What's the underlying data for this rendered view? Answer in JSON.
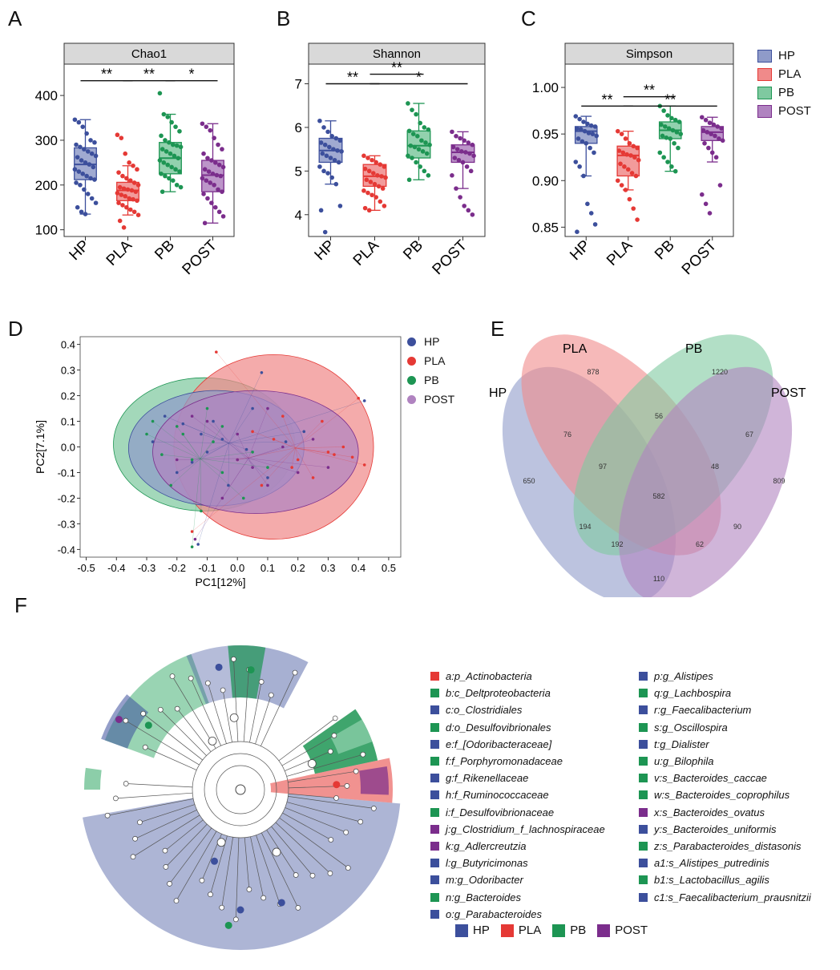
{
  "colors": {
    "HP": "#3c4f9c",
    "PLA": "#e53935",
    "PB": "#1d9553",
    "POST": "#7b2d8c"
  },
  "fill": {
    "HP": "#8f9bc9",
    "PLA": "#f08a8a",
    "PB": "#7fc9a0",
    "POST": "#b083c0"
  },
  "groups": [
    "HP",
    "PLA",
    "PB",
    "POST"
  ],
  "panels": {
    "A": "A",
    "B": "B",
    "C": "C",
    "D": "D",
    "E": "E",
    "F": "F"
  },
  "chart_data": [
    {
      "type": "box",
      "panel": "A",
      "title": "Chao1",
      "categories": [
        "HP",
        "PLA",
        "PB",
        "POST"
      ],
      "ylim": [
        85,
        470
      ],
      "yticks": [
        100,
        200,
        300,
        400
      ],
      "boxes": [
        {
          "q1": 212,
          "median": 246,
          "q3": 283,
          "lo": 135,
          "hi": 346
        },
        {
          "q1": 165,
          "median": 188,
          "q3": 206,
          "lo": 133,
          "hi": 243
        },
        {
          "q1": 225,
          "median": 260,
          "q3": 295,
          "lo": 185,
          "hi": 358
        },
        {
          "q1": 185,
          "median": 222,
          "q3": 255,
          "lo": 115,
          "hi": 337
        }
      ],
      "points": [
        [
          346,
          340,
          330,
          315,
          300,
          295,
          290,
          285,
          280,
          275,
          270,
          265,
          262,
          255,
          250,
          246,
          240,
          235,
          230,
          225,
          220,
          215,
          212,
          205,
          200,
          190,
          180,
          170,
          160,
          150,
          140,
          135
        ],
        [
          312,
          305,
          270,
          250,
          243,
          235,
          228,
          220,
          215,
          210,
          205,
          200,
          195,
          192,
          190,
          188,
          185,
          182,
          178,
          175,
          170,
          168,
          165,
          160,
          155,
          150,
          145,
          140,
          133,
          120,
          105
        ],
        [
          405,
          358,
          352,
          340,
          330,
          320,
          310,
          300,
          295,
          290,
          288,
          285,
          280,
          275,
          270,
          265,
          260,
          255,
          250,
          245,
          240,
          235,
          230,
          225,
          220,
          215,
          210,
          200,
          195,
          185
        ],
        [
          337,
          330,
          322,
          305,
          290,
          280,
          270,
          260,
          255,
          250,
          245,
          240,
          235,
          230,
          225,
          222,
          220,
          215,
          210,
          205,
          200,
          190,
          185,
          180,
          170,
          160,
          150,
          140,
          130,
          115
        ]
      ],
      "significance": [
        {
          "from": 0,
          "to": 1,
          "label": "**",
          "y": 433
        },
        {
          "from": 1,
          "to": 2,
          "label": "**",
          "y": 433
        },
        {
          "from": 2,
          "to": 3,
          "label": "*",
          "y": 433
        }
      ]
    },
    {
      "type": "box",
      "panel": "B",
      "title": "Shannon",
      "categories": [
        "HP",
        "PLA",
        "PB",
        "POST"
      ],
      "ylim": [
        3.5,
        7.45
      ],
      "yticks": [
        4,
        5,
        6,
        7
      ],
      "boxes": [
        {
          "q1": 5.2,
          "median": 5.47,
          "q3": 5.75,
          "lo": 4.7,
          "hi": 6.15
        },
        {
          "q1": 4.65,
          "median": 4.88,
          "q3": 5.15,
          "lo": 4.1,
          "hi": 5.35
        },
        {
          "q1": 5.3,
          "median": 5.58,
          "q3": 5.92,
          "lo": 4.8,
          "hi": 6.55
        },
        {
          "q1": 5.2,
          "median": 5.43,
          "q3": 5.6,
          "lo": 4.6,
          "hi": 5.9
        }
      ],
      "points": [
        [
          6.15,
          6.0,
          5.9,
          5.8,
          5.75,
          5.7,
          5.65,
          5.6,
          5.55,
          5.5,
          5.47,
          5.45,
          5.4,
          5.35,
          5.3,
          5.25,
          5.2,
          5.1,
          5.0,
          4.95,
          4.85,
          4.7,
          4.2,
          4.1,
          3.6
        ],
        [
          5.35,
          5.3,
          5.25,
          5.2,
          5.15,
          5.1,
          5.05,
          5.0,
          4.95,
          4.9,
          4.88,
          4.85,
          4.8,
          4.75,
          4.7,
          4.65,
          4.6,
          4.55,
          4.5,
          4.45,
          4.4,
          4.3,
          4.2,
          4.15,
          4.1
        ],
        [
          6.55,
          6.4,
          6.3,
          6.1,
          6.0,
          5.95,
          5.92,
          5.85,
          5.8,
          5.7,
          5.65,
          5.6,
          5.58,
          5.55,
          5.5,
          5.45,
          5.4,
          5.35,
          5.3,
          5.2,
          5.1,
          5.0,
          4.9,
          4.8
        ],
        [
          5.9,
          5.8,
          5.75,
          5.7,
          5.65,
          5.6,
          5.55,
          5.5,
          5.45,
          5.43,
          5.4,
          5.35,
          5.3,
          5.25,
          5.2,
          5.1,
          5.0,
          4.9,
          4.6,
          4.4,
          4.2,
          4.1,
          4.0
        ]
      ],
      "significance": [
        {
          "from": 0,
          "to": 1,
          "label": "**",
          "y": 7.0
        },
        {
          "from": 1,
          "to": 2,
          "label": "**",
          "y": 7.22
        },
        {
          "from": 1,
          "to": 3,
          "label": "*",
          "y": 7.0
        }
      ]
    },
    {
      "type": "box",
      "panel": "C",
      "title": "Simpson",
      "categories": [
        "HP",
        "PLA",
        "PB",
        "POST"
      ],
      "ylim": [
        0.84,
        1.025
      ],
      "yticks": [
        0.85,
        0.9,
        0.95,
        1.0
      ],
      "ytick_labels": [
        "0.85",
        "0.90",
        "0.95",
        "1.00"
      ],
      "boxes": [
        {
          "q1": 0.94,
          "median": 0.953,
          "q3": 0.958,
          "lo": 0.905,
          "hi": 0.969
        },
        {
          "q1": 0.905,
          "median": 0.927,
          "q3": 0.937,
          "lo": 0.89,
          "hi": 0.953
        },
        {
          "q1": 0.945,
          "median": 0.954,
          "q3": 0.963,
          "lo": 0.91,
          "hi": 0.98
        },
        {
          "q1": 0.943,
          "median": 0.952,
          "q3": 0.958,
          "lo": 0.92,
          "hi": 0.968
        }
      ],
      "points": [
        [
          0.969,
          0.966,
          0.963,
          0.961,
          0.959,
          0.958,
          0.956,
          0.955,
          0.953,
          0.951,
          0.95,
          0.948,
          0.945,
          0.942,
          0.94,
          0.935,
          0.93,
          0.92,
          0.915,
          0.905,
          0.875,
          0.865,
          0.853,
          0.845
        ],
        [
          0.953,
          0.95,
          0.945,
          0.94,
          0.937,
          0.935,
          0.932,
          0.93,
          0.928,
          0.927,
          0.925,
          0.922,
          0.918,
          0.915,
          0.912,
          0.908,
          0.905,
          0.9,
          0.895,
          0.89,
          0.88,
          0.87,
          0.858
        ],
        [
          0.98,
          0.975,
          0.97,
          0.967,
          0.965,
          0.963,
          0.96,
          0.958,
          0.956,
          0.954,
          0.952,
          0.95,
          0.948,
          0.946,
          0.945,
          0.94,
          0.935,
          0.93,
          0.925,
          0.92,
          0.915,
          0.91
        ],
        [
          0.968,
          0.965,
          0.962,
          0.96,
          0.958,
          0.956,
          0.954,
          0.952,
          0.95,
          0.948,
          0.945,
          0.943,
          0.94,
          0.935,
          0.93,
          0.925,
          0.895,
          0.885,
          0.875,
          0.865
        ]
      ],
      "significance": [
        {
          "from": 0,
          "to": 1,
          "label": "**",
          "y": 0.98
        },
        {
          "from": 1,
          "to": 2,
          "label": "**",
          "y": 0.99
        },
        {
          "from": 1,
          "to": 3,
          "label": "**",
          "y": 0.98
        }
      ]
    },
    {
      "type": "scatter",
      "panel": "D",
      "xlabel": "PC1[12%]",
      "ylabel": "PC2[7.1%]",
      "xlim": [
        -0.52,
        0.54
      ],
      "ylim": [
        -0.43,
        0.43
      ],
      "xticks": [
        -0.5,
        -0.4,
        -0.3,
        -0.2,
        -0.1,
        0.0,
        0.1,
        0.2,
        0.3,
        0.4,
        0.5
      ],
      "xtick_labels": [
        "-0.5",
        "-0.4",
        "-0.3",
        "-0.2",
        "-0.1",
        "0.0",
        "0.1",
        "0.2",
        "0.3",
        "0.4",
        "0.5"
      ],
      "yticks": [
        -0.4,
        -0.3,
        -0.2,
        -0.1,
        0.0,
        0.1,
        0.2,
        0.3,
        0.4
      ],
      "ytick_labels": [
        "-0.4",
        "-0.3",
        "-0.2",
        "-0.1",
        "0.0",
        "0.1",
        "0.2",
        "0.3",
        "0.4"
      ],
      "ellipses": [
        {
          "group": "PB",
          "cx": -0.11,
          "cy": 0.01,
          "rx": 0.3,
          "ry": 0.26
        },
        {
          "group": "PLA",
          "cx": 0.12,
          "cy": 0.0,
          "rx": 0.33,
          "ry": 0.36
        },
        {
          "group": "HP",
          "cx": -0.07,
          "cy": -0.005,
          "rx": 0.29,
          "ry": 0.225
        },
        {
          "group": "POST",
          "cx": 0.06,
          "cy": -0.02,
          "rx": 0.34,
          "ry": 0.24
        }
      ],
      "points": {
        "HP": [
          [
            -0.24,
            0.12
          ],
          [
            -0.18,
            0.09
          ],
          [
            -0.12,
            0.05
          ],
          [
            -0.05,
            0.03
          ],
          [
            0.03,
            -0.01
          ],
          [
            -0.28,
            0.02
          ],
          [
            -0.08,
            0.1
          ],
          [
            0.08,
            0.29
          ],
          [
            0.1,
            -0.12
          ],
          [
            -0.15,
            -0.06
          ],
          [
            0.22,
            0.06
          ],
          [
            0.42,
            0.18
          ],
          [
            -0.03,
            -0.15
          ],
          [
            0.16,
            0.02
          ],
          [
            -0.2,
            -0.1
          ],
          [
            -0.13,
            -0.38
          ],
          [
            0.05,
            0.15
          ],
          [
            -0.1,
            -0.02
          ]
        ],
        "PLA": [
          [
            0.12,
            0.03
          ],
          [
            0.2,
            -0.05
          ],
          [
            0.3,
            -0.02
          ],
          [
            0.35,
            0.0
          ],
          [
            0.38,
            -0.04
          ],
          [
            0.42,
            -0.07
          ],
          [
            0.25,
            -0.12
          ],
          [
            0.08,
            -0.15
          ],
          [
            0.15,
            0.12
          ],
          [
            -0.07,
            0.37
          ],
          [
            0.4,
            0.19
          ],
          [
            -0.15,
            -0.33
          ],
          [
            0.32,
            -0.03
          ],
          [
            0.05,
            0.06
          ],
          [
            0.18,
            -0.08
          ],
          [
            0.28,
            0.1
          ],
          [
            0.0,
            -0.05
          ]
        ],
        "PB": [
          [
            -0.28,
            0.1
          ],
          [
            -0.2,
            0.08
          ],
          [
            -0.15,
            -0.05
          ],
          [
            -0.08,
            0.02
          ],
          [
            -0.18,
            0.05
          ],
          [
            -0.12,
            -0.25
          ],
          [
            -0.05,
            -0.1
          ],
          [
            0.02,
            -0.2
          ],
          [
            -0.25,
            -0.03
          ],
          [
            -0.15,
            -0.39
          ],
          [
            -0.1,
            0.15
          ],
          [
            0.05,
            -0.02
          ],
          [
            -0.22,
            -0.15
          ],
          [
            0.1,
            -0.08
          ],
          [
            -0.3,
            0.05
          ],
          [
            -0.05,
            0.08
          ]
        ],
        "POST": [
          [
            -0.1,
            0.1
          ],
          [
            0.0,
            0.05
          ],
          [
            0.05,
            -0.08
          ],
          [
            0.15,
            0.0
          ],
          [
            0.2,
            -0.1
          ],
          [
            -0.2,
            -0.05
          ],
          [
            0.1,
            0.15
          ],
          [
            -0.05,
            -0.2
          ],
          [
            0.25,
            0.03
          ],
          [
            -0.14,
            -0.36
          ],
          [
            0.3,
            -0.08
          ],
          [
            0.1,
            -0.15
          ],
          [
            -0.15,
            0.12
          ],
          [
            0.0,
            -0.05
          ]
        ]
      }
    },
    {
      "type": "venn",
      "panel": "E",
      "sets": [
        "HP",
        "PLA",
        "PB",
        "POST"
      ],
      "values": [
        {
          "label": "878"
        },
        {
          "label": "1220"
        },
        {
          "label": "650"
        },
        {
          "label": "809"
        },
        {
          "label": "56"
        },
        {
          "label": "76"
        },
        {
          "label": "67"
        },
        {
          "label": "97"
        },
        {
          "label": "48"
        },
        {
          "label": "582"
        },
        {
          "label": "194"
        },
        {
          "label": "90"
        },
        {
          "label": "192"
        },
        {
          "label": "62"
        },
        {
          "label": "110"
        }
      ]
    }
  ],
  "lefse": {
    "legend_left": [
      {
        "g": "PLA",
        "label": "a:p_Actinobacteria"
      },
      {
        "g": "PB",
        "label": "b:c_Deltproteobacteria"
      },
      {
        "g": "HP",
        "label": "c:o_Clostridiales"
      },
      {
        "g": "PB",
        "label": "d:o_Desulfovibrionales"
      },
      {
        "g": "HP",
        "label": "e:f_[Odoribacteraceae]"
      },
      {
        "g": "PB",
        "label": "f:f_Porphyromonadaceae"
      },
      {
        "g": "HP",
        "label": "g:f_Rikenellaceae"
      },
      {
        "g": "HP",
        "label": "h:f_Ruminococcaceae"
      },
      {
        "g": "PB",
        "label": "i:f_Desulfovibrionaceae"
      },
      {
        "g": "POST",
        "label": "j:g_Clostridium_f_lachnospiraceae"
      },
      {
        "g": "POST",
        "label": "k:g_Adlercreutzia"
      },
      {
        "g": "HP",
        "label": "l:g_Butyricimonas"
      },
      {
        "g": "HP",
        "label": "m:g_Odoribacter"
      },
      {
        "g": "PB",
        "label": "n:g_Bacteroides"
      },
      {
        "g": "HP",
        "label": "o:g_Parabacteroides"
      }
    ],
    "legend_right": [
      {
        "g": "HP",
        "label": "p:g_Alistipes"
      },
      {
        "g": "PB",
        "label": "q:g_Lachbospira"
      },
      {
        "g": "HP",
        "label": "r:g_Faecalibacterium"
      },
      {
        "g": "PB",
        "label": "s:g_Oscillospira"
      },
      {
        "g": "HP",
        "label": "t:g_Dialister"
      },
      {
        "g": "PB",
        "label": "u:g_Bilophila"
      },
      {
        "g": "PB",
        "label": "v:s_Bacteroides_caccae"
      },
      {
        "g": "PB",
        "label": "w:s_Bacteroides_coprophilus"
      },
      {
        "g": "POST",
        "label": "x:s_Bacteroides_ovatus"
      },
      {
        "g": "HP",
        "label": "y:s_Bacteroides_uniformis"
      },
      {
        "g": "PB",
        "label": "z:s_Parabacteroides_distasonis"
      },
      {
        "g": "HP",
        "label": "a1:s_Alistipes_putredinis"
      },
      {
        "g": "PB",
        "label": "b1:s_Lactobacillus_agilis"
      },
      {
        "g": "HP",
        "label": "c1:s_Faecalibacterium_prausnitzii"
      }
    ],
    "bottom_legend": [
      "HP",
      "PLA",
      "PB",
      "POST"
    ]
  }
}
